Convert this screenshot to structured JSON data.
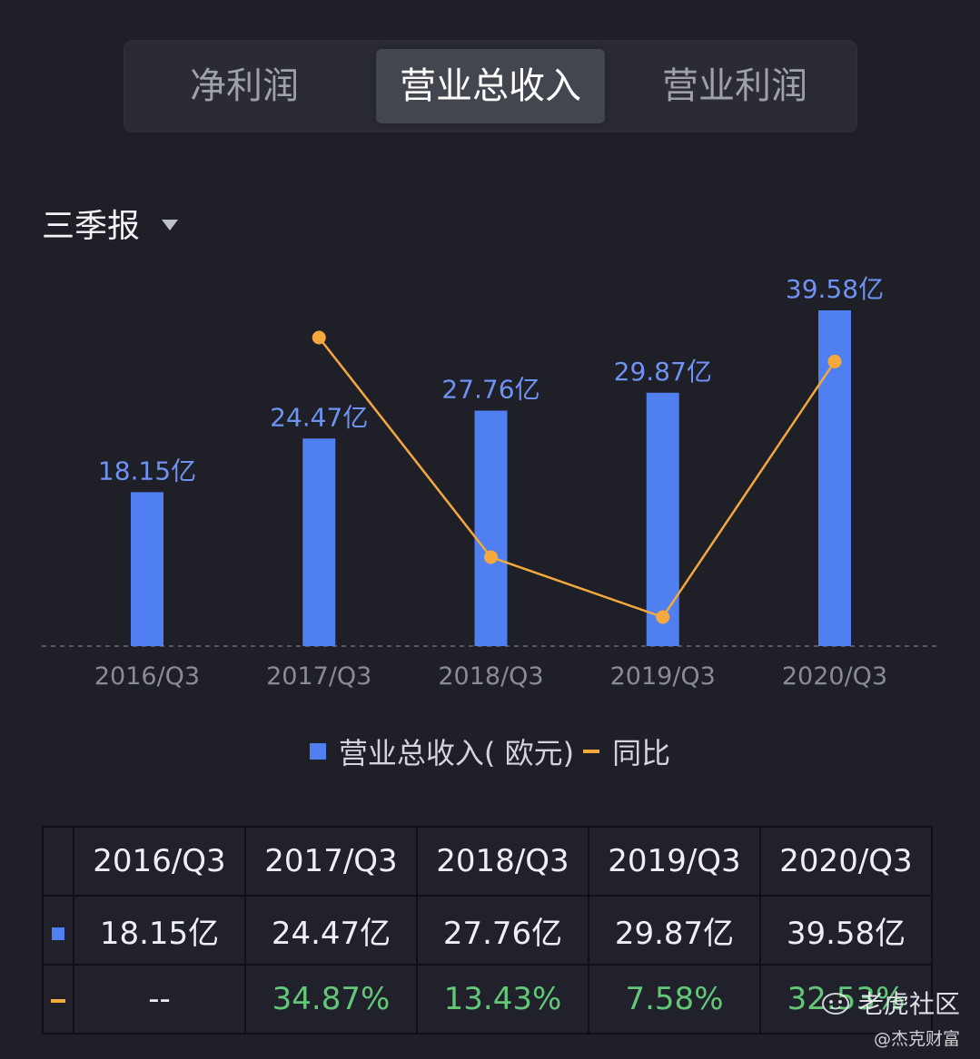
{
  "tabs": [
    {
      "label": "净利润",
      "active": false
    },
    {
      "label": "营业总收入",
      "active": true
    },
    {
      "label": "营业利润",
      "active": false
    }
  ],
  "period": {
    "label": "三季报"
  },
  "chart_data": {
    "type": "bar",
    "categories": [
      "2016/Q3",
      "2017/Q3",
      "2018/Q3",
      "2019/Q3",
      "2020/Q3"
    ],
    "series": [
      {
        "name": "营业总收入( 欧元)",
        "type": "bar",
        "values": [
          18.15,
          24.47,
          27.76,
          29.87,
          39.58
        ],
        "labels": [
          "18.15亿",
          "24.47亿",
          "27.76亿",
          "29.87亿",
          "39.58亿"
        ],
        "color": "#4f7ff0"
      },
      {
        "name": "同比",
        "type": "line",
        "values": [
          null,
          34.87,
          13.43,
          7.58,
          32.53
        ],
        "color": "#f3a93b"
      }
    ],
    "grid": false,
    "legend": "bottom"
  },
  "legend": {
    "bar_label": "营业总收入( 欧元)",
    "line_label": "同比"
  },
  "table": {
    "headers": [
      "2016/Q3",
      "2017/Q3",
      "2018/Q3",
      "2019/Q3",
      "2020/Q3"
    ],
    "revenue_row": [
      "18.15亿",
      "24.47亿",
      "27.76亿",
      "29.87亿",
      "39.58亿"
    ],
    "yoy_row": [
      "--",
      "34.87%",
      "13.43%",
      "7.58%",
      "32.53%"
    ]
  },
  "watermark": {
    "main": "老虎社区",
    "sub": "@杰克财富"
  },
  "colors": {
    "bar": "#4f7ff0",
    "line": "#f3a93b",
    "positive": "#62c878",
    "background": "#1f1f28"
  }
}
